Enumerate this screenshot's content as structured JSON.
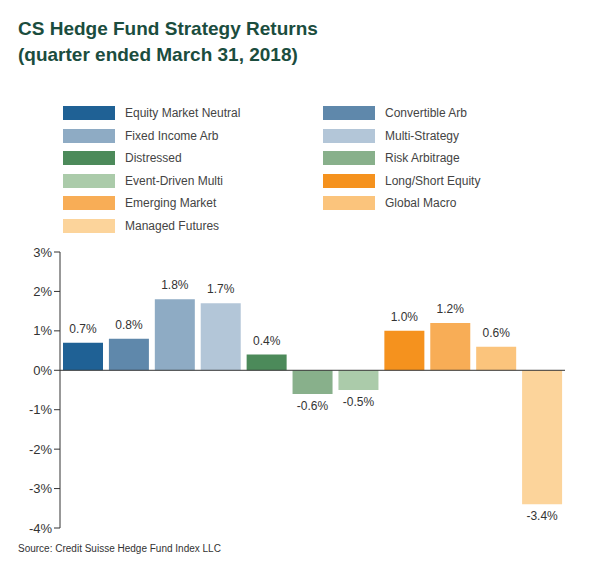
{
  "chart_data": {
    "type": "bar",
    "title": "CS Hedge Fund Strategy Returns",
    "subtitle": "(quarter ended March 31, 2018)",
    "source": "Source: Credit Suisse Hedge Fund Index LLC",
    "categories": [
      "Equity Market Neutral",
      "Convertible Arb",
      "Fixed Income Arb",
      "Multi-Strategy",
      "Distressed",
      "Risk Arbitrage",
      "Event-Driven Multi",
      "Long/Short Equity",
      "Emerging Market",
      "Global Macro",
      "Managed Futures"
    ],
    "values": [
      0.7,
      0.8,
      1.8,
      1.7,
      0.4,
      -0.6,
      -0.5,
      1.0,
      1.2,
      0.6,
      -3.4
    ],
    "value_labels": [
      "0.7%",
      "0.8%",
      "1.8%",
      "1.7%",
      "0.4%",
      "-0.6%",
      "-0.5%",
      "1.0%",
      "1.2%",
      "0.6%",
      "-3.4%"
    ],
    "colors": [
      "#1f6195",
      "#5f88ab",
      "#8eabc4",
      "#b3c6d8",
      "#4c8a5a",
      "#88b08b",
      "#abcbaa",
      "#f5921e",
      "#f8ad56",
      "#fbc47c",
      "#fcd49b"
    ],
    "ylim": [
      -4,
      3
    ],
    "yticks": [
      {
        "value": -4,
        "label": "-4%"
      },
      {
        "value": -3,
        "label": "-3%"
      },
      {
        "value": -2,
        "label": "-2%"
      },
      {
        "value": -1,
        "label": "-1%"
      },
      {
        "value": 0,
        "label": "0%"
      },
      {
        "value": 1,
        "label": "1%"
      },
      {
        "value": 2,
        "label": "2%"
      },
      {
        "value": 3,
        "label": "3%"
      }
    ],
    "legend": "top",
    "data_labels": true,
    "tick_labels": "y",
    "grid": false
  }
}
